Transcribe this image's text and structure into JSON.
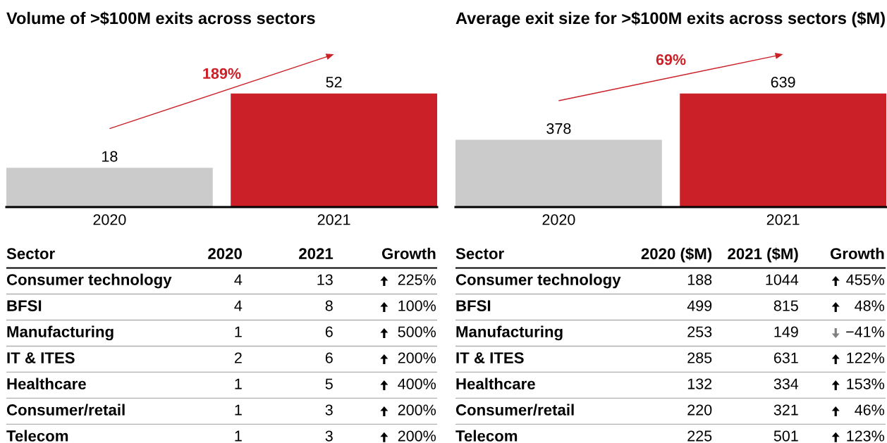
{
  "chart_data": [
    {
      "type": "bar",
      "title": "Volume of >$100M exits across sectors",
      "categories": [
        "2020",
        "2021"
      ],
      "values": [
        18,
        52
      ],
      "colors": [
        "#cbcbcb",
        "#cb2027"
      ],
      "data_labels": true,
      "tick_labels": "x",
      "annotations": [
        "189%"
      ]
    },
    {
      "type": "bar",
      "title": "Average exit size for >$100M exits across sectors ($M)",
      "categories": [
        "2020",
        "2021"
      ],
      "values": [
        378,
        639
      ],
      "colors": [
        "#cbcbcb",
        "#cb2027"
      ],
      "data_labels": true,
      "tick_labels": "x",
      "annotations": [
        "69%"
      ]
    },
    {
      "type": "other",
      "ylabel": "Sector",
      "categories": [
        "Consumer technology",
        "BFSI",
        "Manufacturing",
        "IT & ITES",
        "Healthcare",
        "Consumer/retail",
        "Telecom"
      ],
      "series": [
        {
          "name": "2020",
          "values": [
            4,
            4,
            1,
            2,
            1,
            1,
            1
          ]
        },
        {
          "name": "2021",
          "values": [
            13,
            8,
            6,
            6,
            5,
            3,
            3
          ]
        },
        {
          "name": "Growth",
          "values": [
            225,
            100,
            500,
            200,
            400,
            200,
            200
          ],
          "value_labels": [
            "225%",
            "100%",
            "500%",
            "200%",
            "400%",
            "200%",
            "200%"
          ],
          "colors": [
            "#000000",
            "#000000",
            "#000000",
            "#000000",
            "#000000",
            "#000000",
            "#000000"
          ]
        }
      ],
      "data_labels": true
    },
    {
      "type": "other",
      "ylabel": "Sector",
      "categories": [
        "Consumer technology",
        "BFSI",
        "Manufacturing",
        "IT & ITES",
        "Healthcare",
        "Consumer/retail",
        "Telecom"
      ],
      "series": [
        {
          "name": "2020 ($M)",
          "values": [
            188,
            499,
            253,
            285,
            132,
            220,
            225
          ]
        },
        {
          "name": "2021 ($M)",
          "values": [
            1044,
            815,
            149,
            631,
            334,
            321,
            501
          ]
        },
        {
          "name": "Growth",
          "values": [
            455,
            48,
            -41,
            122,
            153,
            46,
            123
          ],
          "value_labels": [
            "455%",
            "48%",
            "−41%",
            "122%",
            "153%",
            "46%",
            "123%"
          ],
          "colors": [
            "#000000",
            "#000000",
            "#808080",
            "#000000",
            "#000000",
            "#000000",
            "#000000"
          ]
        }
      ],
      "data_labels": true
    }
  ]
}
